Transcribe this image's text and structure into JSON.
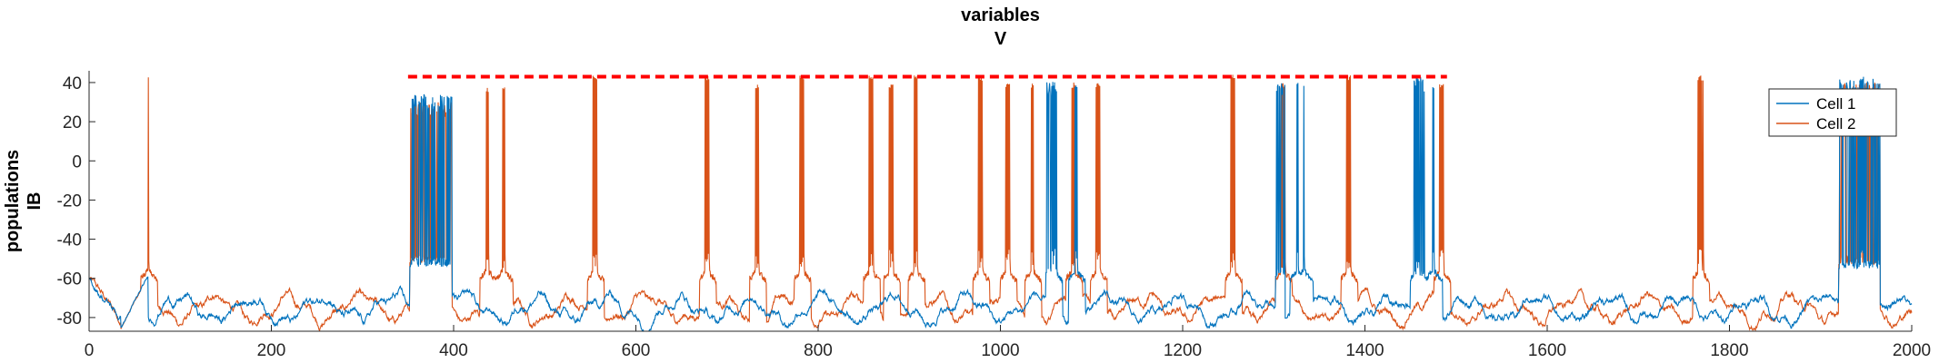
{
  "chart_data": {
    "type": "line",
    "title": [
      "variables",
      "V"
    ],
    "ylabel": [
      "populations",
      "IB"
    ],
    "xlim": [
      0,
      2000
    ],
    "ylim": [
      -87,
      46
    ],
    "xticks": [
      0,
      200,
      400,
      600,
      800,
      1000,
      1200,
      1400,
      1600,
      1800,
      2000
    ],
    "yticks": [
      -80,
      -60,
      -40,
      -20,
      0,
      20,
      40
    ],
    "grid": false,
    "legend_position": "top-right",
    "dashed_line": {
      "y": 43,
      "x_start": 350,
      "x_end": 1490,
      "color": "#ff0000"
    },
    "baseline": {
      "min": -87,
      "typical_low": -82,
      "typical_high": -65
    },
    "series": [
      {
        "name": "Cell 1",
        "color": "#0072bd",
        "plateaus": [
          {
            "start": 352,
            "end": 398,
            "low": -54,
            "high": 34
          },
          {
            "start": 1050,
            "end": 1062,
            "low": -57,
            "high": 41
          },
          {
            "start": 1302,
            "end": 1312,
            "low": -59,
            "high": 41
          },
          {
            "start": 1453,
            "end": 1465,
            "low": -60,
            "high": 43
          },
          {
            "start": 1920,
            "end": 1965,
            "low": -55,
            "high": 42
          }
        ],
        "bursts": [
          {
            "t": 1058,
            "n": 4,
            "peak": 41
          },
          {
            "t": 1083,
            "n": 3,
            "peak": 40
          },
          {
            "t": 1326,
            "n": 2,
            "peak": 40
          },
          {
            "t": 1333,
            "n": 1,
            "peak": 40
          },
          {
            "t": 1458,
            "n": 4,
            "peak": 43
          },
          {
            "t": 1475,
            "n": 2,
            "peak": 40
          },
          {
            "t": 1945,
            "n": 5,
            "peak": 43
          }
        ]
      },
      {
        "name": "Cell 2",
        "color": "#d95319",
        "plateaus": [
          {
            "start": 352,
            "end": 398,
            "low": -52,
            "high": 30
          },
          {
            "start": 1920,
            "end": 1965,
            "low": -53,
            "high": 40
          }
        ],
        "bursts": [
          {
            "t": 65,
            "n": 1,
            "peak": 44
          },
          {
            "t": 437,
            "n": 3,
            "peak": 38
          },
          {
            "t": 455,
            "n": 3,
            "peak": 38
          },
          {
            "t": 555,
            "n": 5,
            "peak": 44
          },
          {
            "t": 678,
            "n": 5,
            "peak": 44
          },
          {
            "t": 733,
            "n": 4,
            "peak": 40
          },
          {
            "t": 782,
            "n": 5,
            "peak": 44
          },
          {
            "t": 858,
            "n": 5,
            "peak": 44
          },
          {
            "t": 880,
            "n": 5,
            "peak": 40
          },
          {
            "t": 907,
            "n": 4,
            "peak": 44
          },
          {
            "t": 978,
            "n": 5,
            "peak": 44
          },
          {
            "t": 1008,
            "n": 5,
            "peak": 40
          },
          {
            "t": 1035,
            "n": 3,
            "peak": 40
          },
          {
            "t": 1080,
            "n": 4,
            "peak": 40
          },
          {
            "t": 1107,
            "n": 5,
            "peak": 40
          },
          {
            "t": 1255,
            "n": 5,
            "peak": 44
          },
          {
            "t": 1310,
            "n": 5,
            "peak": 40
          },
          {
            "t": 1382,
            "n": 5,
            "peak": 44
          },
          {
            "t": 1484,
            "n": 5,
            "peak": 40
          },
          {
            "t": 1768,
            "n": 6,
            "peak": 44
          }
        ]
      }
    ]
  }
}
